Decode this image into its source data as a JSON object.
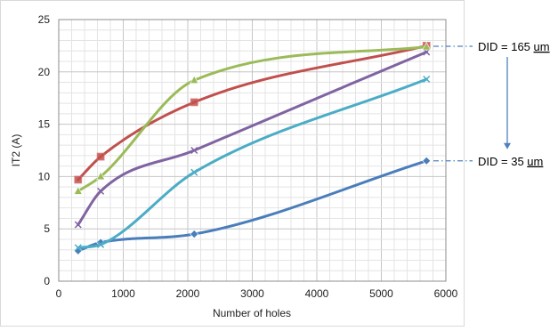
{
  "chart_data": {
    "type": "line",
    "title": "",
    "xlabel": "Number of holes",
    "ylabel": "IT2 (A)",
    "xlim": [
      0,
      6000
    ],
    "ylim": [
      0,
      25
    ],
    "xticks": [
      0,
      1000,
      2000,
      3000,
      4000,
      5000,
      6000
    ],
    "yticks": [
      0,
      5,
      10,
      15,
      20,
      25
    ],
    "grid": true,
    "legend": "none",
    "x": [
      300,
      650,
      2100,
      5700
    ],
    "series": [
      {
        "color": "#4a7ebb",
        "marker": "diamond",
        "values": [
          2.9,
          3.7,
          4.5,
          11.5
        ]
      },
      {
        "color": "#4bacc6",
        "marker": "x",
        "values": [
          3.2,
          3.5,
          10.4,
          19.3
        ]
      },
      {
        "color": "#8064a2",
        "marker": "x",
        "values": [
          5.4,
          8.6,
          12.5,
          21.9
        ]
      },
      {
        "color": "#c0504d",
        "marker": "square",
        "values": [
          9.7,
          11.9,
          17.1,
          22.5
        ]
      },
      {
        "color": "#9bbb59",
        "marker": "triangle",
        "values": [
          8.6,
          10.0,
          19.2,
          22.4
        ]
      }
    ],
    "annotations": [
      {
        "label": "DID = ",
        "value": "165",
        "unit": "um",
        "anchor_y": 22.45
      },
      {
        "label": "DID = ",
        "value": "35",
        "unit": "um",
        "anchor_y": 11.5
      }
    ],
    "arrow_color": "#4f81bd"
  }
}
